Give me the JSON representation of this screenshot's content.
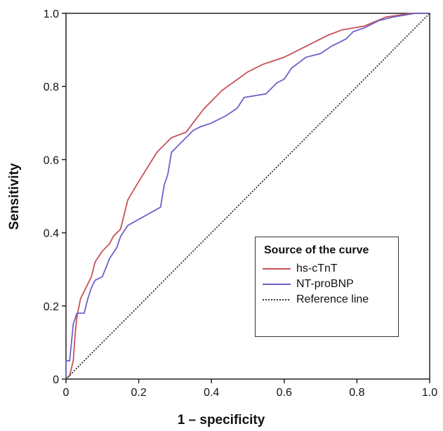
{
  "chart_data": {
    "type": "line",
    "xlabel": "1 – specificity",
    "ylabel": "Sensitivity",
    "xlim": [
      0,
      1
    ],
    "ylim": [
      0,
      1
    ],
    "xticks": [
      0,
      0.2,
      0.4,
      0.6,
      0.8,
      {
        "value": 1,
        "label": "1.0"
      }
    ],
    "yticks": [
      0,
      0.2,
      0.4,
      0.6,
      0.8,
      {
        "value": 1,
        "label": "1.0"
      }
    ],
    "legend": {
      "title": "Source of the curve",
      "position": "lower right"
    },
    "series": [
      {
        "name": "hs-cTnT",
        "color": "#c8505a",
        "line_style": "solid",
        "x": [
          0,
          0.01,
          0.02,
          0.025,
          0.03,
          0.04,
          0.05,
          0.06,
          0.07,
          0.08,
          0.1,
          0.12,
          0.13,
          0.15,
          0.17,
          0.2,
          0.25,
          0.29,
          0.33,
          0.38,
          0.43,
          0.5,
          0.54,
          0.6,
          0.66,
          0.72,
          0.76,
          0.82,
          0.88,
          0.95,
          1
        ],
        "values": [
          0,
          0.01,
          0.05,
          0.12,
          0.17,
          0.22,
          0.24,
          0.26,
          0.28,
          0.32,
          0.35,
          0.37,
          0.39,
          0.41,
          0.49,
          0.54,
          0.62,
          0.66,
          0.675,
          0.74,
          0.79,
          0.84,
          0.86,
          0.88,
          0.91,
          0.94,
          0.955,
          0.965,
          0.99,
          1,
          1
        ]
      },
      {
        "name": "NT-proBNP",
        "color": "#6c62c8",
        "line_style": "solid",
        "x": [
          0,
          0,
          0.01,
          0.015,
          0.02,
          0.03,
          0.05,
          0.06,
          0.07,
          0.08,
          0.1,
          0.12,
          0.14,
          0.15,
          0.17,
          0.26,
          0.27,
          0.28,
          0.29,
          0.32,
          0.35,
          0.37,
          0.4,
          0.44,
          0.47,
          0.49,
          0.55,
          0.58,
          0.6,
          0.62,
          0.66,
          0.7,
          0.73,
          0.77,
          0.79,
          0.82,
          0.86,
          0.9,
          0.96,
          1
        ],
        "values": [
          0,
          0.05,
          0.05,
          0.1,
          0.15,
          0.18,
          0.18,
          0.22,
          0.25,
          0.27,
          0.28,
          0.33,
          0.36,
          0.39,
          0.42,
          0.47,
          0.53,
          0.56,
          0.62,
          0.65,
          0.68,
          0.69,
          0.7,
          0.72,
          0.74,
          0.77,
          0.78,
          0.81,
          0.82,
          0.85,
          0.88,
          0.89,
          0.91,
          0.93,
          0.95,
          0.96,
          0.98,
          0.99,
          1,
          1
        ]
      },
      {
        "name": "Reference line",
        "color": "#333333",
        "line_style": "dotted",
        "x": [
          0,
          1
        ],
        "values": [
          0,
          1
        ]
      }
    ]
  }
}
